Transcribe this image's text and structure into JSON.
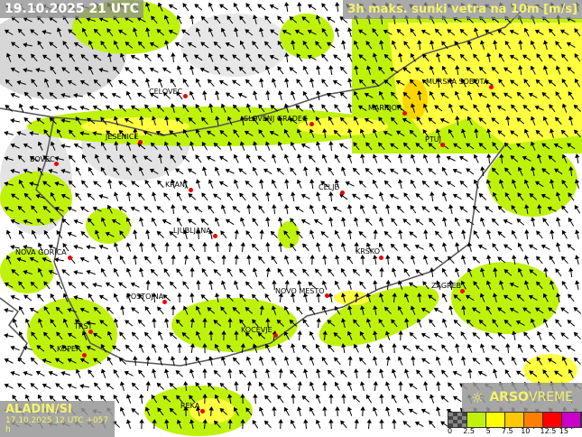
{
  "header": {
    "date_time": "19.10.2025 21 UTC",
    "parameter": "3h maks. sunki vetra na 10m [m/s]"
  },
  "model": {
    "name": "ALADIN/SI",
    "run": "17.10.2025 12 UTC +057 h"
  },
  "logo": {
    "brand_bold": "ARSO",
    "brand_light": "VREME"
  },
  "legend": {
    "labels": [
      "0",
      "2.5",
      "5",
      "7.5",
      "10",
      "12.5",
      "15"
    ],
    "colors": [
      "#555555",
      "#bff20a",
      "#ffff00",
      "#ffc800",
      "#ff7d00",
      "#ff0000",
      "#c800c8"
    ]
  },
  "colors": {
    "low_wind": "#bff20a",
    "mid_wind": "#ffff40",
    "terrain": "#9a9a9a",
    "border": "#555555"
  },
  "cities": [
    {
      "name": "CELOVEC"
    },
    {
      "name": "SLOVENJ GRADEC"
    },
    {
      "name": "MARIBOR"
    },
    {
      "name": "MURSKA SOBOTA"
    },
    {
      "name": "JESENICE"
    },
    {
      "name": "PTUJ"
    },
    {
      "name": "BOVEC"
    },
    {
      "name": "KRANJ"
    },
    {
      "name": "CELJE"
    },
    {
      "name": "LJUBLJANA"
    },
    {
      "name": "NOVA GORICA"
    },
    {
      "name": "KRSKO"
    },
    {
      "name": "ZAGREB"
    },
    {
      "name": "POSTOJNA"
    },
    {
      "name": "NOVO MESTO"
    },
    {
      "name": "TRST"
    },
    {
      "name": "KOCEVJE"
    },
    {
      "name": "KOPER"
    },
    {
      "name": "REKA"
    }
  ]
}
